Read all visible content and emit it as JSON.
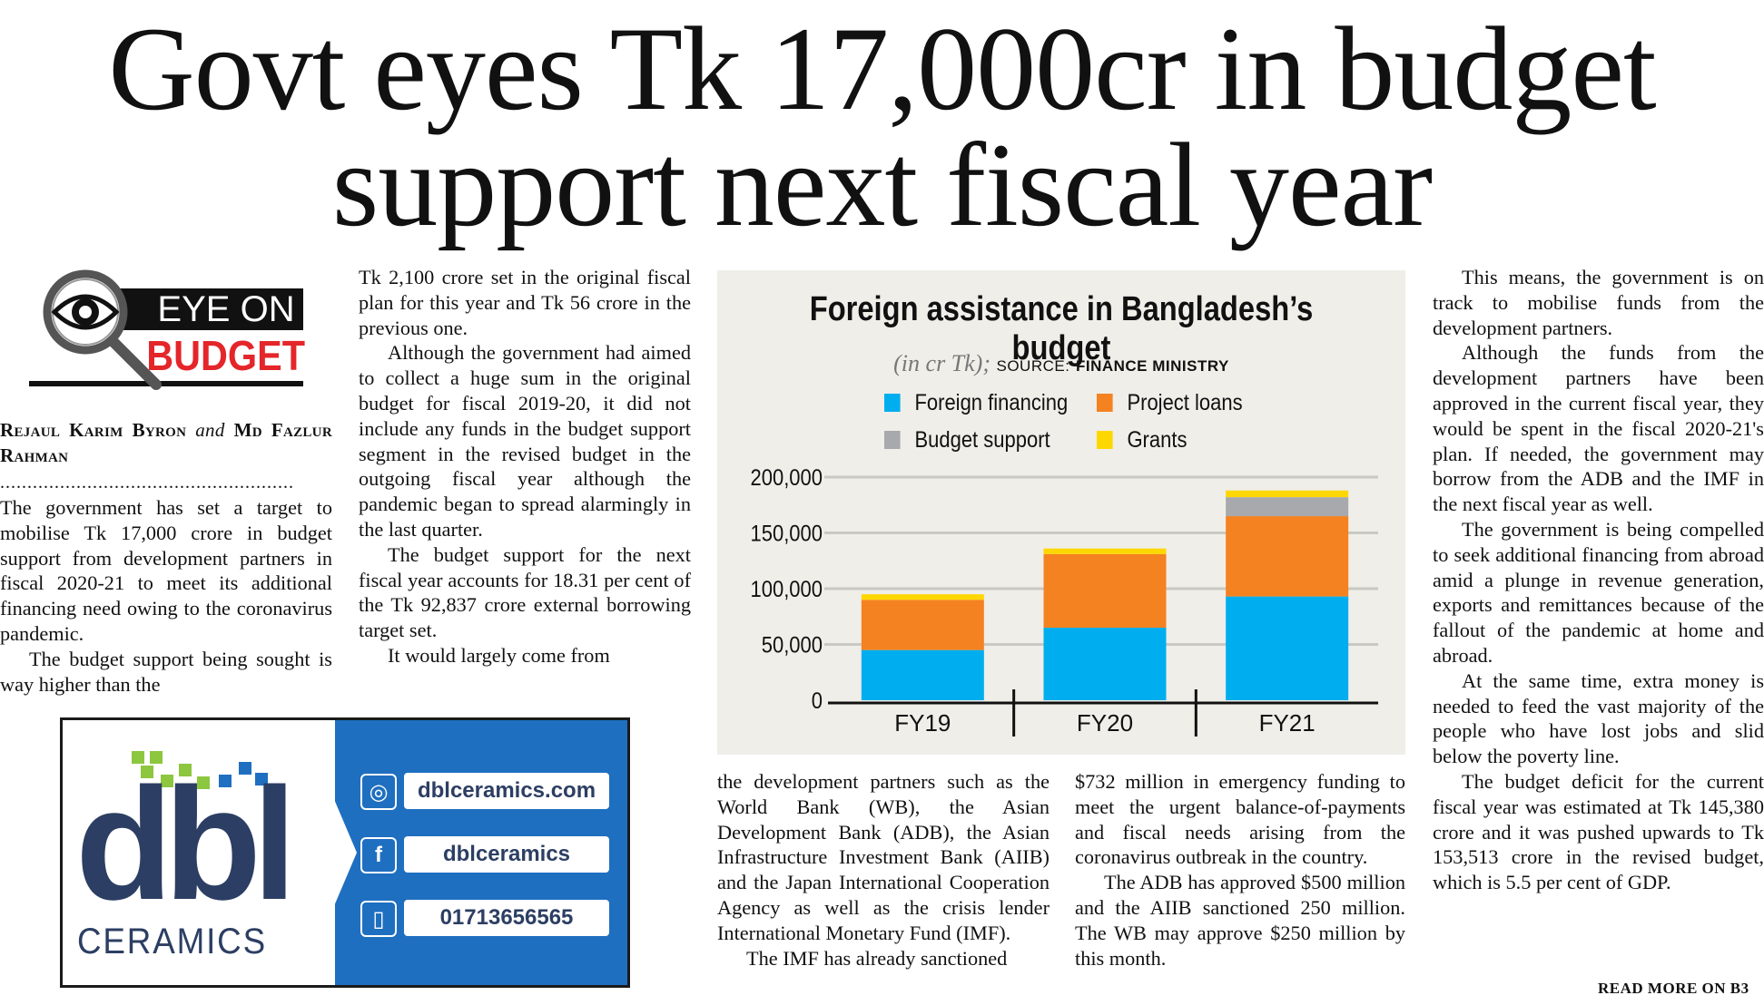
{
  "headline": {
    "line1": "Govt eyes Tk 17,000cr in budget",
    "line2": "support next fiscal year"
  },
  "logo": {
    "line1": "EYE ON",
    "line2": "BUDGET"
  },
  "byline": {
    "author1": "Rejaul Karim Byron",
    "and": "and",
    "author2": "Md Fazlur Rahman",
    "dots": "......................................................"
  },
  "col1": {
    "p1": "The government has set a target to mobilise Tk 17,000 crore in budget support from development partners in fiscal 2020-21 to meet its additional financing need owing to the coronavirus pandemic.",
    "p2": "The budget support being sought is way higher than the"
  },
  "col2": {
    "p1": "Tk 2,100 crore set in the original fiscal plan for this year and Tk 56 crore in the previous one.",
    "p2": "Although the government had aimed to collect a huge sum in the original budget for fiscal 2019-20, it did not include any funds in the budget support segment in the revised budget in the outgoing fiscal year although the pandemic began to spread alarmingly in the last quarter.",
    "p3": "The budget support for the next fiscal year accounts for 18.31 per cent of the Tk 92,837 crore external borrowing target set.",
    "p4": "It would largely come from"
  },
  "col3": {
    "p1": "the development partners such as the World Bank (WB), the Asian Development Bank (ADB), the Asian Infrastructure Investment Bank (AIIB) and the Japan International Cooperation Agency as well as the crisis lender International Monetary Fund (IMF).",
    "p2": "The IMF has already sanctioned"
  },
  "col4": {
    "p1": "$732 million in emergency funding to meet the urgent balance-of-payments and fiscal needs arising from the coronavirus outbreak in the country.",
    "p2": "The ADB has approved $500 million and the AIIB sanctioned 250 million. The WB may approve $250 million by this month."
  },
  "col5": {
    "p1": "This means, the government is on track to mobilise funds from the development partners.",
    "p2": "Although the funds from the development partners have been approved in the current fiscal year, they would be spent in the fiscal 2020-21's plan. If needed, the government may borrow from the ADB and the IMF in the next fiscal year as well.",
    "p3": "The government is being compelled to seek additional financing from abroad amid a plunge in revenue generation, exports and remittances because of the fallout of the pandemic at home and abroad.",
    "p4": "At the same time, extra money is needed to feed the vast majority of the people who have lost jobs and slid below the poverty line.",
    "p5": "The budget deficit for the current fiscal year was estimated at Tk 145,380 crore and it was pushed upwards to Tk 153,513 crore in the revised budget, which is 5.5 per cent of GDP."
  },
  "read_more": "READ MORE ON B3",
  "ad": {
    "brand_big": "dbl",
    "brand_small": "CERAMICS",
    "website": "dblceramics.com",
    "facebook": "dblceramics",
    "phone": "01713656565",
    "web_icon": "globe-icon",
    "fb_icon": "facebook-icon",
    "phone_icon": "phone-icon",
    "brand_color": "#2c3e63",
    "panel_color": "#1f6fc0"
  },
  "chart_data": {
    "type": "bar",
    "stacked": true,
    "title": "Foreign assistance in Bangladesh’s budget",
    "unit": "(in cr Tk);",
    "source_label": "SOURCE:",
    "source_name": "FINANCE MINISTRY",
    "categories": [
      "FY19",
      "FY20",
      "FY21"
    ],
    "ylim": [
      0,
      200000
    ],
    "yticks": [
      0,
      50000,
      100000,
      150000,
      200000
    ],
    "ytick_labels": [
      "0",
      "50,000",
      "100,000",
      "150,000",
      "200,000"
    ],
    "legend": [
      "Foreign financing",
      "Project loans",
      "Budget support",
      "Grants"
    ],
    "series": [
      {
        "name": "Foreign financing",
        "color": "#00aeef",
        "values": [
          45000,
          65000,
          93000
        ]
      },
      {
        "name": "Project loans",
        "color": "#f58220",
        "values": [
          45000,
          66000,
          72000
        ]
      },
      {
        "name": "Budget support",
        "color": "#a7a9ac",
        "values": [
          0,
          0,
          17000
        ]
      },
      {
        "name": "Grants",
        "color": "#ffd700",
        "values": [
          5000,
          5000,
          6000
        ]
      }
    ],
    "grid": true
  }
}
